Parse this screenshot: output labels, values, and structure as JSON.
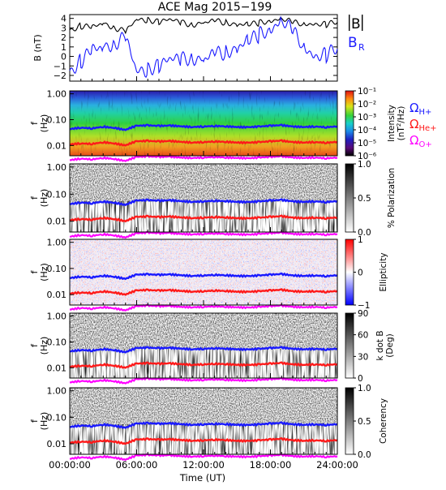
{
  "title": "ACE Mag 2015−199",
  "xlabel": "Time (UT)",
  "x_ticks": [
    "00:00:00",
    "06:00:00",
    "12:00:00",
    "18:00:00",
    "24:00:00"
  ],
  "colors": {
    "magnitude": "#000000",
    "radial": "#1a1aff",
    "proton": "#1a1aff",
    "helium": "#ff1a1a",
    "oxygen": "#ff00ff"
  },
  "chart_data": [
    {
      "type": "line",
      "ylabel": "B (nT)",
      "yticks": [
        "4",
        "3",
        "2",
        "1",
        "0",
        "−1",
        "−2"
      ],
      "ylim": [
        -2.6,
        4.4
      ],
      "xlim": [
        0,
        24
      ],
      "legend": [
        "|B|",
        "B_R"
      ],
      "legend_display": {
        "b_main": "B",
        "r_main": "B",
        "r_sub": "R"
      },
      "series": [
        {
          "name": "|B|",
          "key": "magnitude",
          "x": [
            0,
            1,
            2,
            3,
            4,
            5,
            6,
            7,
            8,
            9,
            10,
            11,
            12,
            13,
            14,
            15,
            16,
            17,
            18,
            19,
            20,
            21,
            22,
            23,
            24
          ],
          "values": [
            2.8,
            3.2,
            3.0,
            3.5,
            3.1,
            2.6,
            3.8,
            3.9,
            3.7,
            3.8,
            3.6,
            3.4,
            3.5,
            3.7,
            3.6,
            3.4,
            3.3,
            3.5,
            3.8,
            4.0,
            3.5,
            3.4,
            3.5,
            3.3,
            3.6
          ]
        },
        {
          "name": "B_R",
          "key": "radial",
          "x": [
            0,
            1,
            2,
            3,
            4,
            5,
            6,
            7,
            8,
            9,
            10,
            11,
            12,
            13,
            14,
            15,
            16,
            17,
            18,
            19,
            20,
            21,
            22,
            23,
            24
          ],
          "values": [
            -1.5,
            -0.5,
            0.5,
            1.0,
            1.5,
            2.0,
            -1.8,
            -1.2,
            -0.8,
            -0.5,
            -0.2,
            0.0,
            -0.5,
            0.2,
            0.5,
            1.0,
            1.5,
            2.2,
            3.0,
            3.8,
            2.5,
            1.0,
            0.2,
            0.0,
            0.8
          ]
        }
      ]
    },
    {
      "type": "heatmap",
      "variable": "Intensity",
      "colorbar_label": "Intensity (nT²/Hz)",
      "colorbar_display": {
        "main": "Intensity",
        "unit_a": "(nT",
        "unit_sup": "2",
        "unit_b": "/Hz)"
      },
      "colorbar_ticks": [
        "10⁻¹",
        "10⁻²",
        "10⁻³",
        "10⁻⁴",
        "10⁻⁵",
        "10⁻⁶"
      ],
      "ylabel": "f (Hz)",
      "yticks": [
        "1.00",
        "0.10",
        "0.01"
      ],
      "ylim": [
        0.004,
        1.3
      ],
      "log_y": true,
      "legend": [
        "ΩH+",
        "ΩHe+",
        "ΩO+"
      ],
      "legend_display": [
        {
          "main": "Ω",
          "sub": "H+"
        },
        {
          "main": "Ω",
          "sub": "He+"
        },
        {
          "main": "Ω",
          "sub": "O+"
        }
      ]
    },
    {
      "type": "heatmap",
      "variable": "% Polarization",
      "colorbar_label": "% Polarization",
      "colorbar_ticks": [
        "1.0",
        "0.5",
        "0.0"
      ],
      "ylabel": "f (Hz)",
      "yticks": [
        "1.00",
        "0.10",
        "0.01"
      ],
      "log_y": true
    },
    {
      "type": "heatmap",
      "variable": "Ellipticity",
      "colorbar_label": "Ellipticity",
      "colorbar_ticks": [
        "1",
        "0",
        "−1"
      ],
      "ylabel": "f (Hz)",
      "yticks": [
        "1.00",
        "0.10",
        "0.01"
      ],
      "log_y": true
    },
    {
      "type": "heatmap",
      "variable": "k dot B",
      "colorbar_label": "k dot B (Deg)",
      "colorbar_ticks": [
        "90",
        "60",
        "30",
        "0"
      ],
      "ylabel": "f (Hz)",
      "yticks": [
        "1.00",
        "0.10",
        "0.01"
      ],
      "log_y": true
    },
    {
      "type": "heatmap",
      "variable": "Coherency",
      "colorbar_label": "Coherency",
      "colorbar_ticks": [
        "1.0",
        "0.5",
        "0.0"
      ],
      "ylabel": "f (Hz)",
      "yticks": [
        "1.00",
        "0.10",
        "0.01"
      ],
      "log_y": true
    }
  ],
  "gyrofrequencies": {
    "x": [
      0,
      1,
      2,
      3,
      4,
      5,
      6,
      7,
      8,
      9,
      10,
      11,
      12,
      13,
      14,
      15,
      16,
      17,
      18,
      19,
      20,
      21,
      22,
      23,
      24
    ],
    "proton_hz": [
      0.043,
      0.049,
      0.046,
      0.053,
      0.048,
      0.04,
      0.058,
      0.06,
      0.057,
      0.059,
      0.055,
      0.052,
      0.054,
      0.057,
      0.055,
      0.052,
      0.051,
      0.054,
      0.058,
      0.061,
      0.054,
      0.052,
      0.054,
      0.051,
      0.055
    ],
    "helium_hz": [
      0.011,
      0.012,
      0.0115,
      0.0133,
      0.012,
      0.01,
      0.0145,
      0.015,
      0.0143,
      0.0148,
      0.0138,
      0.013,
      0.0135,
      0.0143,
      0.0138,
      0.013,
      0.0128,
      0.0135,
      0.0145,
      0.0153,
      0.0135,
      0.013,
      0.0135,
      0.0128,
      0.0138
    ],
    "oxygen_hz": [
      0.0027,
      0.0031,
      0.0029,
      0.0033,
      0.003,
      0.0025,
      0.0036,
      0.0038,
      0.0036,
      0.0037,
      0.0034,
      0.0033,
      0.0034,
      0.0036,
      0.0034,
      0.0033,
      0.0032,
      0.0034,
      0.0036,
      0.0038,
      0.0034,
      0.0033,
      0.0034,
      0.0032,
      0.0034
    ]
  }
}
